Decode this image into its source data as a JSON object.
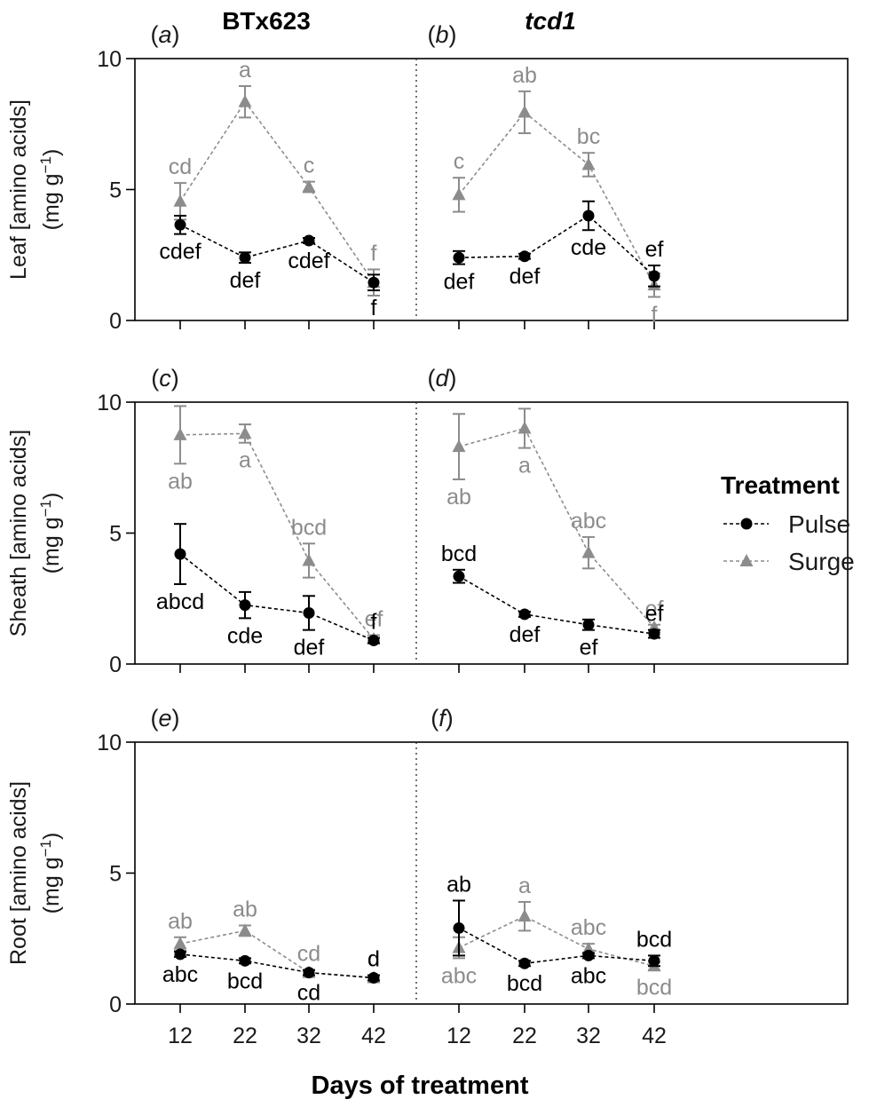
{
  "chart_data": {
    "type": "line",
    "xlabel": "Days of treatment",
    "x": [
      12,
      22,
      32,
      42
    ],
    "ylim": [
      0,
      10
    ],
    "yticks": [
      0,
      5,
      10
    ],
    "column_titles": [
      {
        "text": "BTx623",
        "italic": false
      },
      {
        "text": "tcd1",
        "italic": true
      }
    ],
    "row_ylabels": [
      {
        "line1": "Leaf [amino acids]",
        "line2": "(mg g",
        "sup": "−1",
        "close": ")"
      },
      {
        "line1": "Sheath [amino acids]",
        "line2": "(mg g",
        "sup": "−1",
        "close": ")"
      },
      {
        "line1": "Root [amino acids]",
        "line2": "(mg g",
        "sup": "−1",
        "close": ")"
      }
    ],
    "legend": {
      "title": "Treatment",
      "entries": [
        {
          "name": "Pulse",
          "marker": "circle",
          "color": "#000000"
        },
        {
          "name": "Surge",
          "marker": "triangle",
          "color": "#8c8c8c"
        }
      ]
    },
    "panels": [
      {
        "id": "a",
        "row": 0,
        "col": 0,
        "series": [
          {
            "name": "Pulse",
            "values": [
              3.65,
              2.4,
              3.05,
              1.45
            ],
            "errors": [
              0.35,
              0.2,
              0.1,
              0.3
            ],
            "labels": [
              "cdef",
              "def",
              "cdef",
              "f"
            ],
            "label_pos": [
              "below",
              "below",
              "below",
              "below"
            ]
          },
          {
            "name": "Surge",
            "values": [
              4.55,
              8.35,
              5.1,
              1.45
            ],
            "errors": [
              0.7,
              0.6,
              0.2,
              0.5
            ],
            "labels": [
              "cd",
              "a",
              "c",
              "f"
            ],
            "label_pos": [
              "above",
              "above",
              "above",
              "above"
            ]
          }
        ]
      },
      {
        "id": "b",
        "row": 0,
        "col": 1,
        "series": [
          {
            "name": "Pulse",
            "values": [
              2.4,
              2.45,
              4.0,
              1.7
            ],
            "errors": [
              0.25,
              0.1,
              0.55,
              0.4
            ],
            "labels": [
              "def",
              "def",
              "cde",
              "ef"
            ],
            "label_pos": [
              "below",
              "below",
              "below",
              "above"
            ]
          },
          {
            "name": "Surge",
            "values": [
              4.8,
              7.95,
              5.95,
              1.35
            ],
            "errors": [
              0.65,
              0.8,
              0.45,
              0.45
            ],
            "labels": [
              "c",
              "ab",
              "bc",
              "f"
            ],
            "label_pos": [
              "above",
              "above",
              "above",
              "below"
            ]
          }
        ]
      },
      {
        "id": "c",
        "row": 1,
        "col": 0,
        "series": [
          {
            "name": "Pulse",
            "values": [
              4.2,
              2.25,
              1.95,
              0.9
            ],
            "errors": [
              1.15,
              0.5,
              0.65,
              0.1
            ],
            "labels": [
              "abcd",
              "cde",
              "def",
              "f"
            ],
            "label_pos": [
              "below",
              "below",
              "below",
              "above"
            ]
          },
          {
            "name": "Surge",
            "values": [
              8.75,
              8.8,
              3.95,
              0.95
            ],
            "errors": [
              1.1,
              0.35,
              0.65,
              0.15
            ],
            "labels": [
              "ab",
              "a",
              "bcd",
              "ef"
            ],
            "label_pos": [
              "below",
              "below",
              "above",
              "above"
            ]
          }
        ]
      },
      {
        "id": "d",
        "row": 1,
        "col": 1,
        "series": [
          {
            "name": "Pulse",
            "values": [
              3.35,
              1.9,
              1.5,
              1.15
            ],
            "errors": [
              0.25,
              0.1,
              0.2,
              0.15
            ],
            "labels": [
              "bcd",
              "def",
              "ef",
              "ef"
            ],
            "label_pos": [
              "above",
              "below",
              "below",
              "above"
            ]
          },
          {
            "name": "Surge",
            "values": [
              8.3,
              9.0,
              4.25,
              1.4
            ],
            "errors": [
              1.25,
              0.75,
              0.6,
              0.1
            ],
            "labels": [
              "ab",
              "a",
              "abc",
              "ef"
            ],
            "label_pos": [
              "below",
              "below",
              "above",
              "above"
            ]
          }
        ]
      },
      {
        "id": "e",
        "row": 2,
        "col": 0,
        "series": [
          {
            "name": "Pulse",
            "values": [
              1.9,
              1.65,
              1.2,
              1.0
            ],
            "errors": [
              0.1,
              0.1,
              0.1,
              0.1
            ],
            "labels": [
              "abc",
              "bcd",
              "cd",
              "d"
            ],
            "label_pos": [
              "below",
              "below",
              "below",
              "above"
            ]
          },
          {
            "name": "Surge",
            "values": [
              2.3,
              2.8,
              1.2,
              1.0
            ],
            "errors": [
              0.25,
              0.2,
              0.1,
              0.1
            ],
            "labels": [
              "ab",
              "ab",
              "cd",
              "d"
            ],
            "label_pos": [
              "above",
              "above",
              "above",
              "above"
            ]
          }
        ]
      },
      {
        "id": "f",
        "row": 2,
        "col": 1,
        "series": [
          {
            "name": "Pulse",
            "values": [
              2.9,
              1.55,
              1.85,
              1.65
            ],
            "errors": [
              1.05,
              0.1,
              0.1,
              0.2
            ],
            "labels": [
              "ab",
              "bcd",
              "abc",
              "bcd"
            ],
            "label_pos": [
              "above",
              "below",
              "below",
              "above"
            ]
          },
          {
            "name": "Surge",
            "values": [
              2.15,
              3.35,
              2.1,
              1.45
            ],
            "errors": [
              0.4,
              0.55,
              0.2,
              0.15
            ],
            "labels": [
              "abc",
              "a",
              "abc",
              "bcd"
            ],
            "label_pos": [
              "below",
              "above",
              "above",
              "below"
            ]
          }
        ]
      }
    ]
  }
}
